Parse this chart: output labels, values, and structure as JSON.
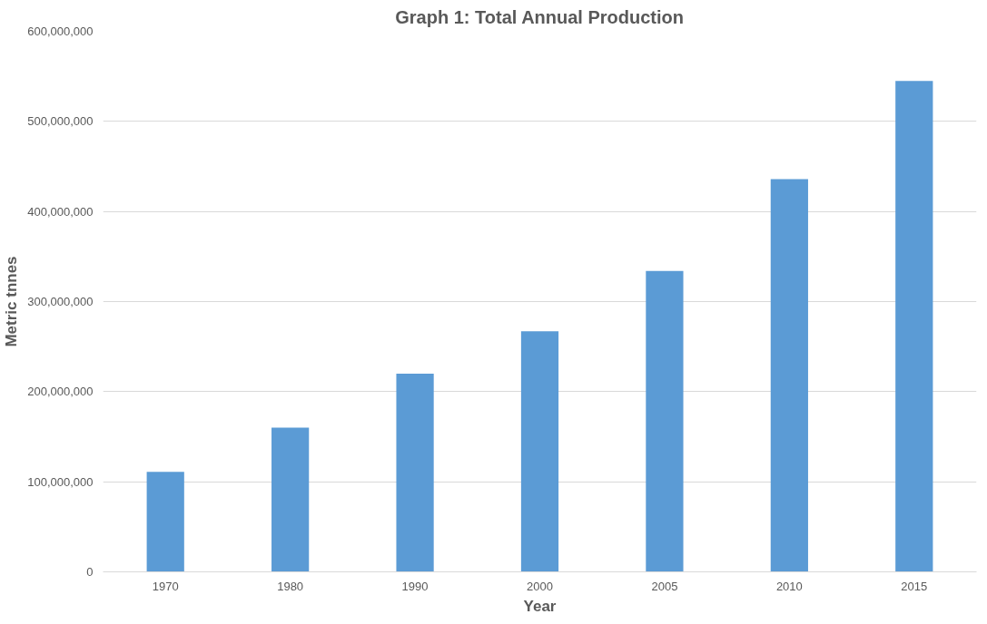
{
  "chart_data": {
    "type": "bar",
    "title": "Graph 1: Total Annual Production",
    "xlabel": "Year",
    "ylabel": "Metric tnnes",
    "categories": [
      "1970",
      "1980",
      "1990",
      "2000",
      "2005",
      "2010",
      "2015"
    ],
    "values": [
      111000000,
      160000000,
      220000000,
      267000000,
      334000000,
      436000000,
      545000000
    ],
    "color": "#5b9bd5",
    "ylim": [
      0,
      600000000
    ],
    "yticks": [
      {
        "value": 0,
        "label": "0"
      },
      {
        "value": 100000000,
        "label": "100,000,000"
      },
      {
        "value": 200000000,
        "label": "200,000,000"
      },
      {
        "value": 300000000,
        "label": "300,000,000"
      },
      {
        "value": 400000000,
        "label": "400,000,000"
      },
      {
        "value": 500000000,
        "label": "500,000,000"
      },
      {
        "value": 600000000,
        "label": "600,000,000"
      }
    ],
    "grid": "y"
  }
}
